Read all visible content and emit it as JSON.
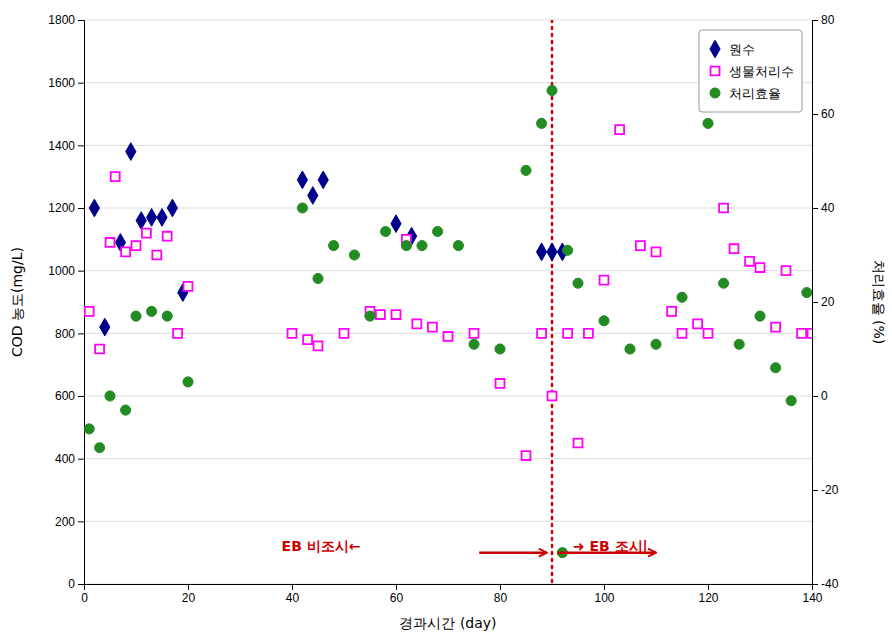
{
  "chart_data": {
    "type": "scatter",
    "xlabel": "경과시간 (day)",
    "ylabel": "COD 농도(mg/L)",
    "y2label": "처리효율 (%)",
    "xlim": [
      0,
      140
    ],
    "xticks": [
      0,
      20,
      40,
      60,
      80,
      100,
      120,
      140
    ],
    "ylim": [
      0,
      1800
    ],
    "yticks": [
      0,
      200,
      400,
      600,
      800,
      1000,
      1200,
      1400,
      1600,
      1800
    ],
    "y2lim": [
      -40,
      80
    ],
    "y2ticks": [
      -40,
      -20,
      0,
      20,
      40,
      60,
      80
    ],
    "grid": true,
    "legend": "upper right",
    "series": [
      {
        "name": "원수",
        "color": "#00008B",
        "marker": "diamond",
        "axis": "y",
        "x": [
          2,
          4,
          7,
          9,
          11,
          13,
          15,
          17,
          19,
          42,
          44,
          46,
          60,
          63,
          88,
          90,
          92
        ],
        "values": [
          1200,
          820,
          1090,
          1380,
          1160,
          1170,
          1170,
          1200,
          930,
          1290,
          1240,
          1290,
          1150,
          1110,
          1060,
          1060,
          1060
        ]
      },
      {
        "name": "생물처리수",
        "color": "#FF00FF",
        "marker": "square",
        "axis": "y",
        "x": [
          1,
          3,
          5,
          6,
          8,
          10,
          12,
          14,
          16,
          18,
          20,
          40,
          43,
          45,
          50,
          55,
          57,
          60,
          62,
          64,
          67,
          70,
          75,
          80,
          85,
          88,
          90,
          93,
          95,
          97,
          100,
          103,
          107,
          110,
          113,
          115,
          118,
          120,
          123,
          125,
          128,
          130,
          133,
          135,
          138,
          140
        ],
        "values": [
          870,
          750,
          1090,
          1300,
          1060,
          1080,
          1120,
          1050,
          1110,
          800,
          950,
          800,
          780,
          760,
          800,
          870,
          860,
          860,
          1100,
          830,
          820,
          790,
          800,
          640,
          410,
          800,
          600,
          800,
          450,
          800,
          970,
          1450,
          1080,
          1060,
          870,
          800,
          830,
          800,
          1200,
          1070,
          1030,
          1010,
          820,
          1000,
          800,
          800
        ]
      },
      {
        "name": "처리효율",
        "color": "#228B22",
        "marker": "circle",
        "axis": "y2",
        "x": [
          1,
          3,
          5,
          8,
          10,
          13,
          16,
          20,
          42,
          45,
          48,
          52,
          55,
          58,
          62,
          65,
          68,
          72,
          75,
          80,
          85,
          88,
          90,
          93,
          95,
          100,
          105,
          110,
          115,
          120,
          123,
          126,
          130,
          133,
          136,
          139
        ],
        "values": [
          -7,
          -11,
          0,
          -3,
          17,
          18,
          17,
          3,
          40,
          25,
          32,
          30,
          17,
          35,
          32,
          32,
          35,
          32,
          11,
          10,
          48,
          58,
          65,
          31,
          24,
          16,
          10,
          11,
          21,
          58,
          24,
          11,
          17,
          6,
          -1,
          22
        ]
      }
    ],
    "vlines": [
      {
        "x": 90,
        "color": "#CC0000",
        "line_style": "dotted"
      }
    ],
    "arrows": [
      {
        "x": [
          76,
          89
        ],
        "y": 100,
        "color": "#CC0000"
      },
      {
        "x": [
          91,
          110
        ],
        "y": 100,
        "color": "#CC0000"
      }
    ],
    "points": [
      {
        "x": 92,
        "y": -33.333333333333336,
        "axis": "y2",
        "color": "#228B22",
        "marker": "circle"
      }
    ],
    "annotations": [
      {
        "text": "EB 비조시←",
        "x": 38,
        "y": 105,
        "color": "#CC0000"
      },
      {
        "text": "➜ EB 조시|",
        "x": 94,
        "y": 105,
        "color": "#CC0000"
      }
    ]
  }
}
